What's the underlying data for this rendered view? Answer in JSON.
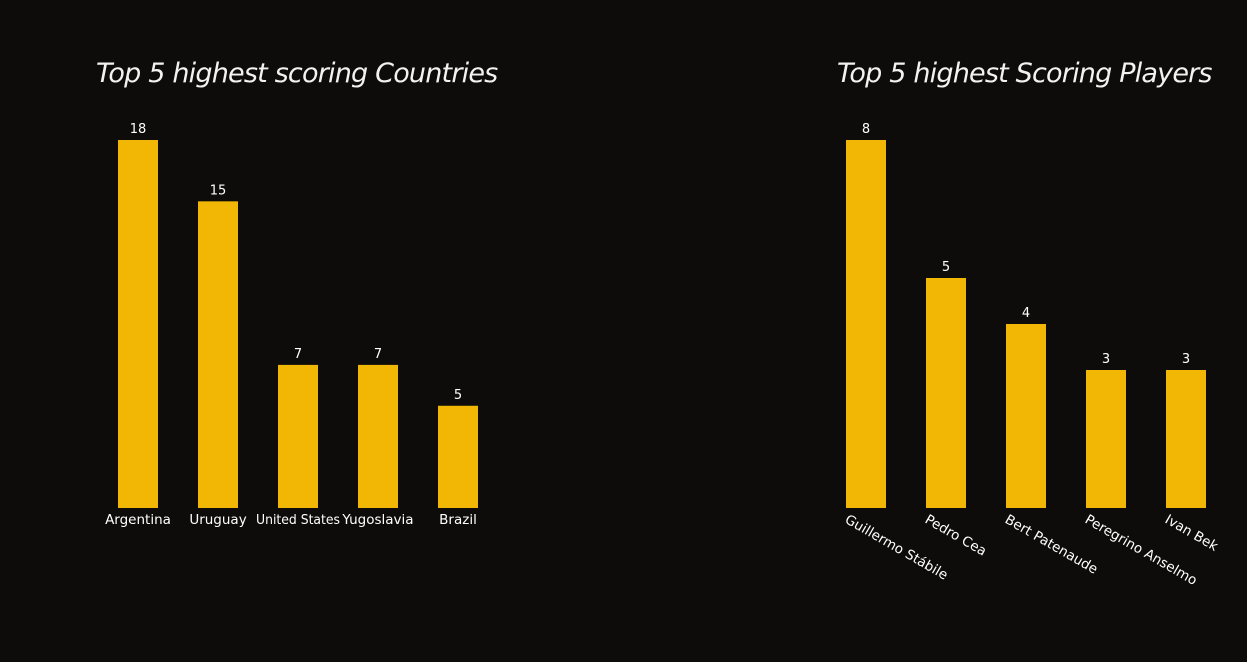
{
  "chart_data": [
    {
      "type": "bar",
      "title": "Top 5 highest scoring Countries",
      "categories": [
        "Argentina",
        "Uruguay",
        "United States",
        "Yugoslavia",
        "Brazil"
      ],
      "values": [
        18,
        15,
        7,
        7,
        5
      ],
      "xlabel": "",
      "ylabel": "",
      "ylim": [
        0,
        18
      ],
      "grid": false,
      "data_labels": true,
      "tick_label_rotation": 0,
      "colors": {
        "bar": "#f2b705",
        "background": "#0e0b0b",
        "text": "#ffffff"
      }
    },
    {
      "type": "bar",
      "title": "Top 5 highest Scoring Players",
      "categories": [
        "Guillermo Stábile",
        "Pedro Cea",
        "Bert Patenaude",
        "Peregrino Anselmo",
        "Ivan Bek"
      ],
      "values": [
        8,
        5,
        4,
        3,
        3
      ],
      "xlabel": "",
      "ylabel": "",
      "ylim": [
        0,
        8
      ],
      "grid": false,
      "data_labels": true,
      "tick_label_rotation": 30,
      "colors": {
        "bar": "#f2b705",
        "background": "#0e0b0b",
        "text": "#ffffff"
      }
    }
  ]
}
